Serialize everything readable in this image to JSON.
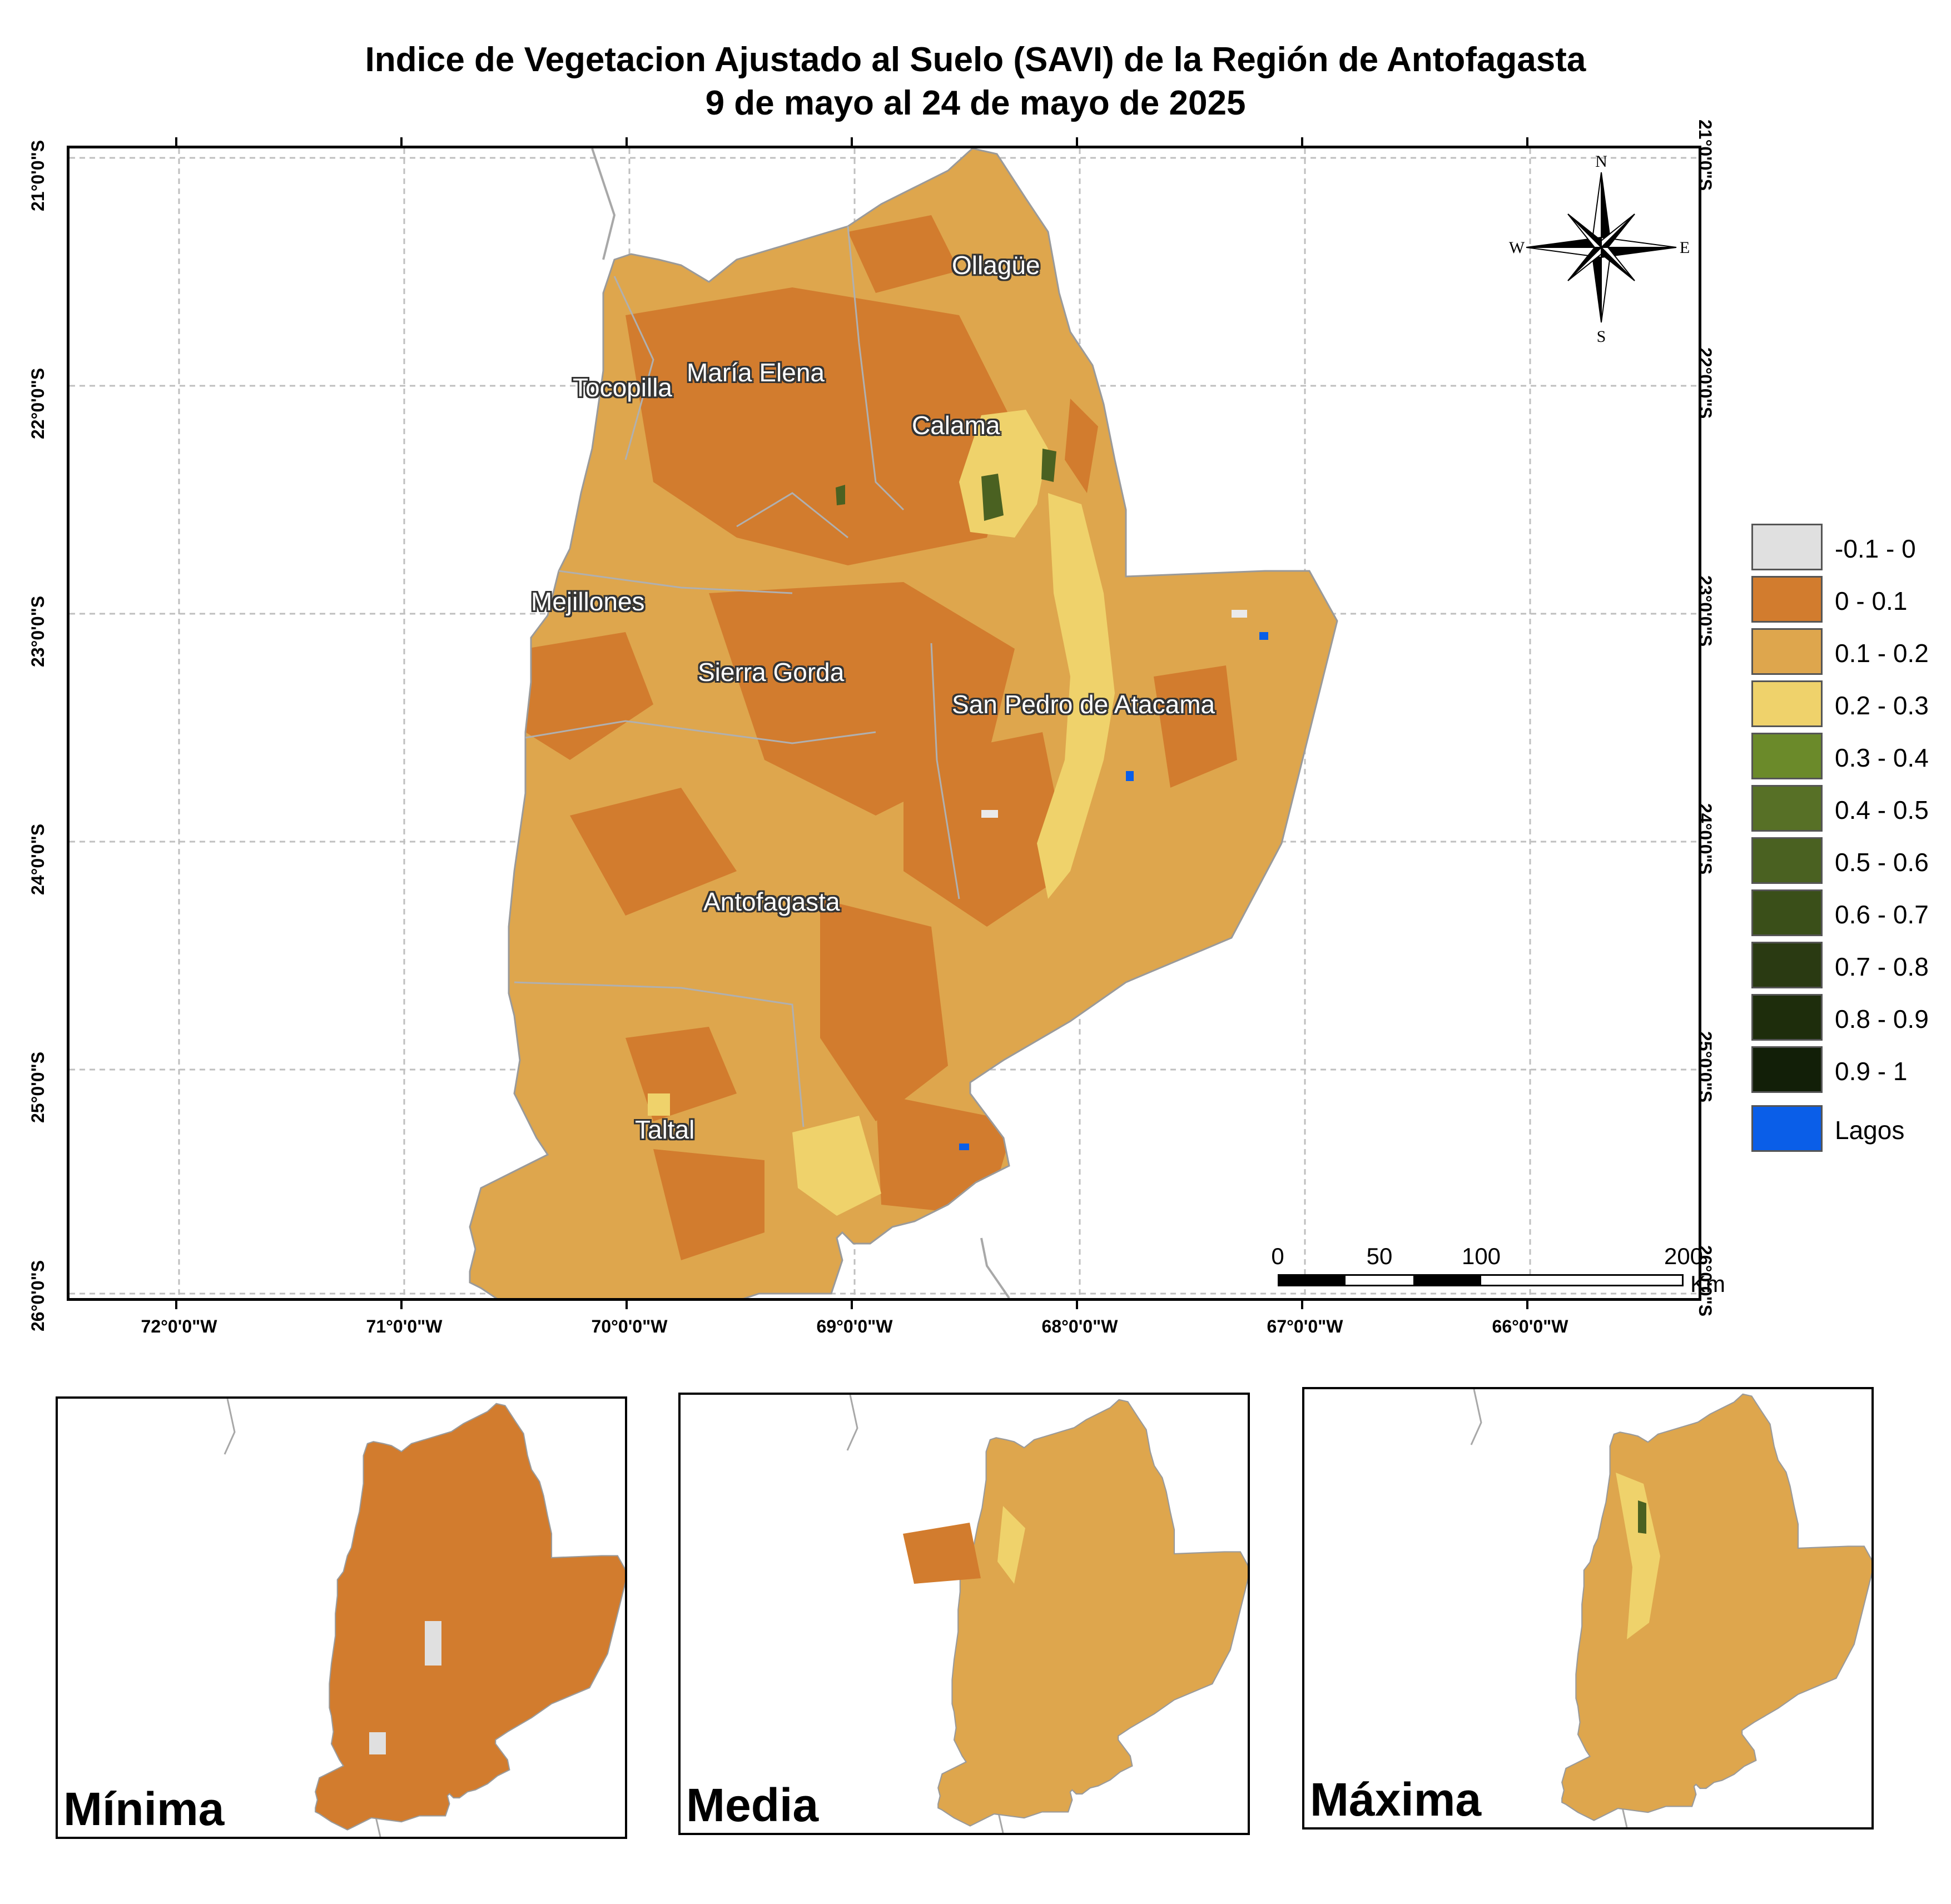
{
  "title": {
    "line1": "Indice de Vegetacion Ajustado al Suelo (SAVI) de la Región de Antofagasta",
    "line2": "9 de mayo al 24 de mayo de 2025"
  },
  "grid": {
    "longitudes": [
      "72°0'0\"W",
      "71°0'0\"W",
      "70°0'0\"W",
      "69°0'0\"W",
      "68°0'0\"W",
      "67°0'0\"W",
      "66°0'0\"W"
    ],
    "latitudes": [
      "21°0'0\"S",
      "22°0'0\"S",
      "23°0'0\"S",
      "24°0'0\"S",
      "25°0'0\"S",
      "26°0'0\"S"
    ]
  },
  "places": {
    "ollague": "Ollagüe",
    "tocopilla": "Tocopilla",
    "maria_elena": "María Elena",
    "calama": "Calama",
    "mejillones": "Mejillones",
    "sierra_gorda": "Sierra Gorda",
    "san_pedro": "San Pedro de Atacama",
    "antofagasta": "Antofagasta",
    "taltal": "Taltal"
  },
  "compass": {
    "n": "N",
    "s": "S",
    "e": "E",
    "w": "W"
  },
  "legend": {
    "items": [
      {
        "label": "-0.1 - 0",
        "color": "#e0e0e0"
      },
      {
        "label": "0 - 0.1",
        "color": "#d27c2e"
      },
      {
        "label": "0.1 - 0.2",
        "color": "#dea64d"
      },
      {
        "label": "0.2 - 0.3",
        "color": "#efd26b"
      },
      {
        "label": "0.3 - 0.4",
        "color": "#6b8a2a"
      },
      {
        "label": "0.4 - 0.5",
        "color": "#577026"
      },
      {
        "label": "0.5 - 0.6",
        "color": "#4a6121"
      },
      {
        "label": "0.6 - 0.7",
        "color": "#3a4f19"
      },
      {
        "label": "0.7 - 0.8",
        "color": "#2a3a12"
      },
      {
        "label": "0.8 - 0.9",
        "color": "#1e2d0c"
      },
      {
        "label": "0.9 - 1",
        "color": "#121f08"
      },
      {
        "label": "Lagos",
        "color": "#0a5ee8"
      }
    ]
  },
  "scale_bar": {
    "labels": [
      "0",
      "50",
      "100",
      "200"
    ],
    "unit": "Km"
  },
  "insets": {
    "minima": "Mínima",
    "media": "Media",
    "maxima": "Máxima"
  }
}
